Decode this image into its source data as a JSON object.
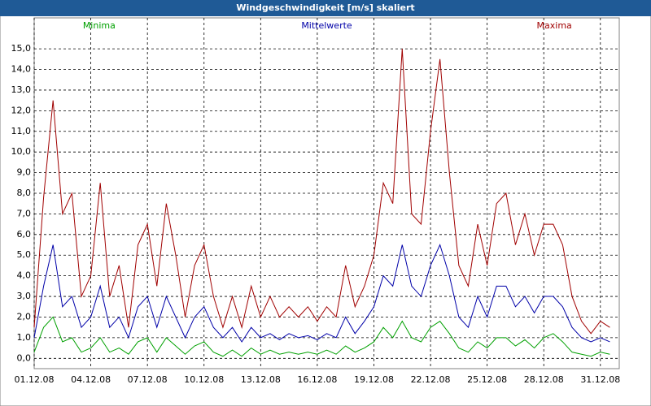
{
  "chart_data": {
    "type": "line",
    "title": "Windgeschwindigkeit [m/s] skaliert",
    "legend": "top",
    "grid": true,
    "xlim": [
      0,
      31
    ],
    "xticks": [
      {
        "value": 0,
        "label": "01.12.08"
      },
      {
        "value": 3,
        "label": "04.12.08"
      },
      {
        "value": 6,
        "label": "07.12.08"
      },
      {
        "value": 9,
        "label": "10.12.08"
      },
      {
        "value": 12,
        "label": "13.12.08"
      },
      {
        "value": 15,
        "label": "16.12.08"
      },
      {
        "value": 18,
        "label": "19.12.08"
      },
      {
        "value": 21,
        "label": "22.12.08"
      },
      {
        "value": 24,
        "label": "25.12.08"
      },
      {
        "value": 27,
        "label": "28.12.08"
      },
      {
        "value": 30,
        "label": "31.12.08"
      }
    ],
    "ylim": [
      -0.5,
      16.5
    ],
    "yticks": [
      {
        "value": 0,
        "label": "0,0"
      },
      {
        "value": 1,
        "label": "1,0"
      },
      {
        "value": 2,
        "label": "2,0"
      },
      {
        "value": 3,
        "label": "3,0"
      },
      {
        "value": 4,
        "label": "4,0"
      },
      {
        "value": 5,
        "label": "5,0"
      },
      {
        "value": 6,
        "label": "6,0"
      },
      {
        "value": 7,
        "label": "7,0"
      },
      {
        "value": 8,
        "label": "8,0"
      },
      {
        "value": 9,
        "label": "9,0"
      },
      {
        "value": 10,
        "label": "10,0"
      },
      {
        "value": 11,
        "label": "11,0"
      },
      {
        "value": 12,
        "label": "12,0"
      },
      {
        "value": 13,
        "label": "13,0"
      },
      {
        "value": 14,
        "label": "14,0"
      },
      {
        "value": 15,
        "label": "15,0"
      }
    ],
    "x": [
      0,
      0.5,
      1,
      1.5,
      2,
      2.5,
      3,
      3.5,
      4,
      4.5,
      5,
      5.5,
      6,
      6.5,
      7,
      7.5,
      8,
      8.5,
      9,
      9.5,
      10,
      10.5,
      11,
      11.5,
      12,
      12.5,
      13,
      13.5,
      14,
      14.5,
      15,
      15.5,
      16,
      16.5,
      17,
      17.5,
      18,
      18.5,
      19,
      19.5,
      20,
      20.5,
      21,
      21.5,
      22,
      22.5,
      23,
      23.5,
      24,
      24.5,
      25,
      25.5,
      26,
      26.5,
      27,
      27.5,
      28,
      28.5,
      29,
      29.5,
      30,
      30.5
    ],
    "series": [
      {
        "name": "Minima",
        "color": "#00a000",
        "values": [
          0.3,
          1.5,
          2.0,
          0.8,
          1.0,
          0.3,
          0.5,
          1.0,
          0.3,
          0.5,
          0.2,
          0.8,
          1.0,
          0.3,
          1.0,
          0.6,
          0.2,
          0.6,
          0.8,
          0.3,
          0.1,
          0.4,
          0.1,
          0.5,
          0.2,
          0.4,
          0.2,
          0.3,
          0.2,
          0.3,
          0.2,
          0.4,
          0.2,
          0.6,
          0.3,
          0.5,
          0.8,
          1.5,
          1.0,
          1.8,
          1.0,
          0.8,
          1.5,
          1.8,
          1.2,
          0.5,
          0.3,
          0.8,
          0.5,
          1.0,
          1.0,
          0.6,
          0.9,
          0.5,
          1.0,
          1.2,
          0.8,
          0.3,
          0.2,
          0.1,
          0.3,
          0.2
        ]
      },
      {
        "name": "Mittelwerte",
        "color": "#0000a8",
        "values": [
          1.0,
          3.5,
          5.5,
          2.5,
          3.0,
          1.5,
          2.0,
          3.5,
          1.5,
          2.0,
          1.0,
          2.5,
          3.0,
          1.5,
          3.0,
          2.0,
          1.0,
          2.0,
          2.5,
          1.5,
          1.0,
          1.5,
          0.8,
          1.5,
          1.0,
          1.2,
          0.9,
          1.2,
          1.0,
          1.1,
          0.9,
          1.2,
          1.0,
          2.0,
          1.2,
          1.8,
          2.5,
          4.0,
          3.5,
          5.5,
          3.5,
          3.0,
          4.5,
          5.5,
          4.0,
          2.0,
          1.5,
          3.0,
          2.0,
          3.5,
          3.5,
          2.5,
          3.0,
          2.2,
          3.0,
          3.0,
          2.5,
          1.5,
          1.0,
          0.8,
          1.0,
          0.8
        ]
      },
      {
        "name": "Maxima",
        "color": "#a00000",
        "values": [
          1.5,
          7.8,
          12.5,
          7.0,
          8.0,
          3.0,
          4.0,
          8.5,
          3.0,
          4.5,
          1.5,
          5.5,
          6.5,
          3.5,
          7.5,
          5.0,
          2.0,
          4.5,
          5.5,
          3.0,
          1.5,
          3.0,
          1.5,
          3.5,
          2.0,
          3.0,
          2.0,
          2.5,
          2.0,
          2.5,
          1.8,
          2.5,
          2.0,
          4.5,
          2.5,
          3.5,
          5.0,
          8.5,
          7.5,
          15.0,
          7.0,
          6.5,
          11.0,
          14.5,
          9.0,
          4.5,
          3.5,
          6.5,
          4.5,
          7.5,
          8.0,
          5.5,
          7.0,
          5.0,
          6.5,
          6.5,
          5.5,
          3.0,
          1.8,
          1.2,
          1.8,
          1.5
        ]
      }
    ]
  }
}
